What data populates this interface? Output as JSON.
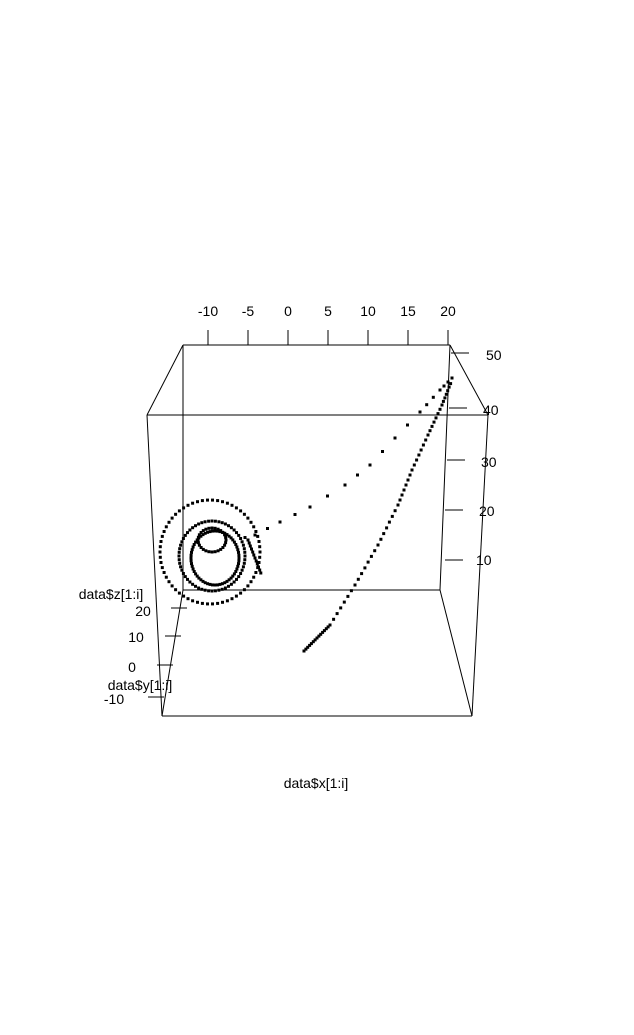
{
  "chart_data": {
    "type": "scatter",
    "title": "",
    "xlabel": "data$x[1:i]",
    "ylabel": "data$y[1:i]",
    "zlabel": "data$z[1:i]",
    "x_ticks": [
      "-10",
      "-5",
      "0",
      "5",
      "10",
      "15",
      "20"
    ],
    "y_ticks": [
      "-10",
      "0",
      "10",
      "20"
    ],
    "z_ticks": [
      "10",
      "20",
      "30",
      "40",
      "50"
    ],
    "xlim": [
      -12,
      21
    ],
    "ylim": [
      -10,
      25
    ],
    "zlim": [
      0,
      55
    ],
    "marker_color": "#000000",
    "grid": false,
    "box": true
  }
}
